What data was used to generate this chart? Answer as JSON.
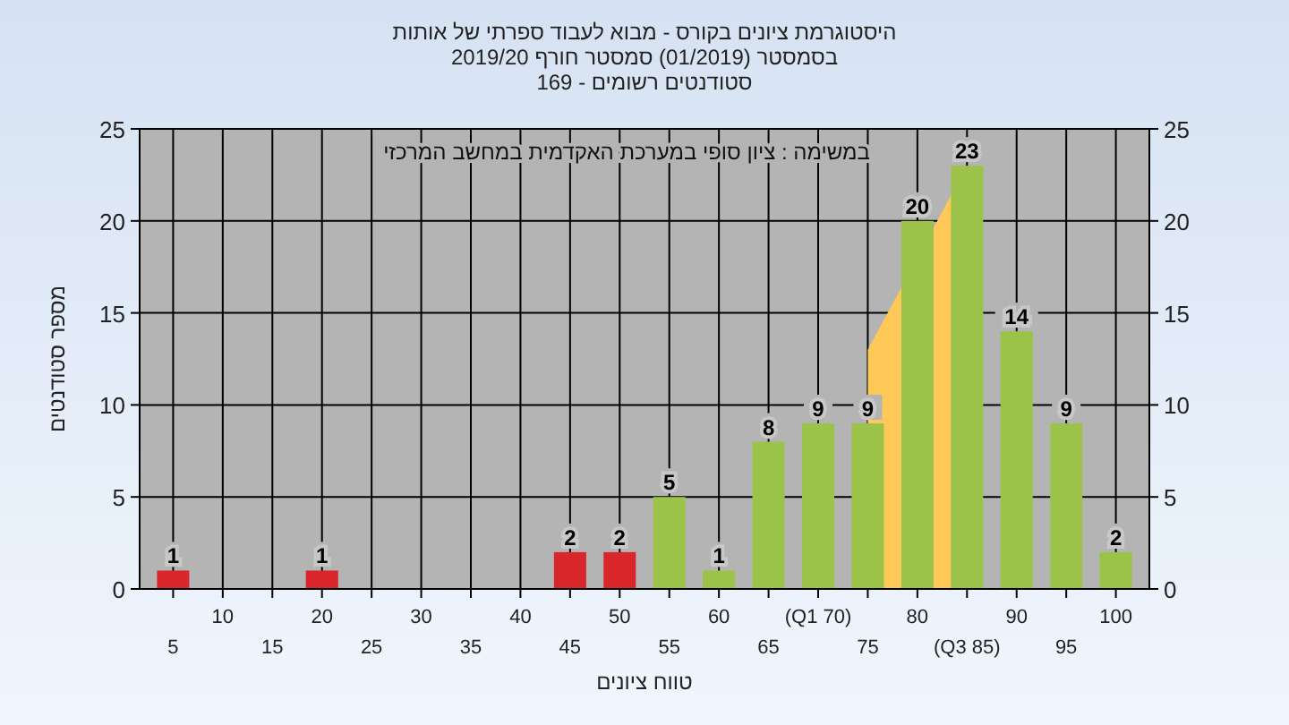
{
  "chart_data": {
    "type": "bar",
    "title": "היסטוגרמת ציונים בקורס - מבוא לעבוד ספרתי של אותות",
    "subtitle": "בסמסטר  (01/2019)  סמסטר חורף 2019/20",
    "annotations": [
      "סטודנטים רשומים - 169",
      "במשימה : ציון סופי במערכת האקדמית במחשב המרכזי"
    ],
    "xlabel": "טווח ציונים",
    "ylabel": "מספר סטודנטים",
    "categories": [
      "5",
      "10",
      "15",
      "20",
      "25",
      "30",
      "35",
      "40",
      "45",
      "50",
      "55",
      "60",
      "65",
      "(Q1 70)",
      "75",
      "80",
      "(Q3 85)",
      "90",
      "95",
      "100"
    ],
    "series": [
      {
        "type": "area",
        "color": "#ffc95a",
        "values": [
          null,
          null,
          null,
          null,
          null,
          null,
          null,
          null,
          null,
          null,
          null,
          null,
          null,
          null,
          13,
          null,
          23,
          null,
          null,
          null
        ]
      },
      {
        "values": [
          1,
          0,
          0,
          1,
          0,
          0,
          0,
          0,
          2,
          2,
          5,
          1,
          8,
          9,
          9,
          20,
          23,
          14,
          9,
          2
        ],
        "colors": [
          "#d9262b",
          "#d9262b",
          "#d9262b",
          "#d9262b",
          "#d9262b",
          "#d9262b",
          "#d9262b",
          "#d9262b",
          "#d9262b",
          "#d9262b",
          "#9bc34a",
          "#9bc34a",
          "#9bc34a",
          "#9bc34a",
          "#9bc34a",
          "#9bc34a",
          "#9bc34a",
          "#9bc34a",
          "#9bc34a",
          "#9bc34a"
        ],
        "value_labels": [
          "1",
          null,
          null,
          "1",
          null,
          null,
          null,
          null,
          "2",
          "2",
          "5",
          "1",
          "8",
          "9",
          "9",
          "20",
          "23",
          "14",
          "9",
          "2"
        ]
      }
    ],
    "ylim": [
      0,
      25
    ],
    "yticks": [
      0,
      5,
      10,
      15,
      20,
      25
    ],
    "y2lim": [
      0,
      25
    ],
    "y2ticks": [
      0,
      5,
      10,
      15,
      20,
      25
    ],
    "grid": true
  }
}
